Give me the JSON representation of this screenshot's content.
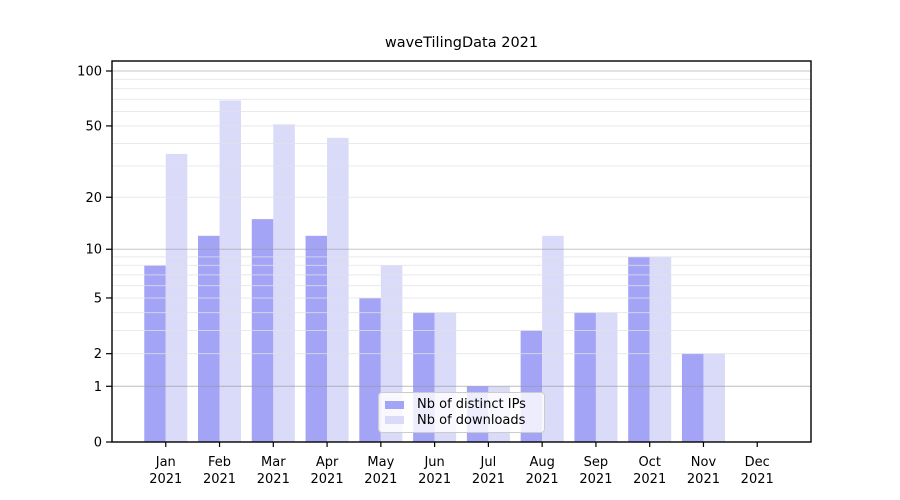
{
  "figure": {
    "title": "waveTilingData 2021"
  },
  "chart_data": {
    "type": "bar",
    "title": "waveTilingData 2021",
    "categories": [
      "Jan",
      "Feb",
      "Mar",
      "Apr",
      "May",
      "Jun",
      "Jul",
      "Aug",
      "Sep",
      "Oct",
      "Nov",
      "Dec"
    ],
    "x_year": "2021",
    "series": [
      {
        "name": "Nb of distinct IPs",
        "color": "#a4a4f6",
        "values": [
          8,
          12,
          15,
          12,
          5,
          4,
          1,
          3,
          4,
          9,
          2,
          0
        ]
      },
      {
        "name": "Nb of downloads",
        "color": "#dadaf9",
        "values": [
          35,
          69,
          51,
          43,
          8,
          4,
          1,
          12,
          4,
          9,
          2,
          0
        ]
      }
    ],
    "yscale": "log1p",
    "ylim": [
      0,
      100
    ],
    "yticks": [
      100,
      50,
      20,
      10,
      5,
      2,
      1,
      0
    ],
    "major_gridlines": [
      1,
      10,
      100
    ],
    "minor_gridlines": [
      2,
      3,
      4,
      5,
      6,
      7,
      8,
      9,
      20,
      30,
      40,
      50,
      60,
      70,
      80,
      90
    ],
    "grid": true,
    "legend_position": "lower-center",
    "colors": {
      "axis": "#000000",
      "grid_major": "rgba(150,150,152,0.55)",
      "grid_minor": "rgba(225,225,230,0.75)",
      "background": "#ffffff"
    }
  }
}
